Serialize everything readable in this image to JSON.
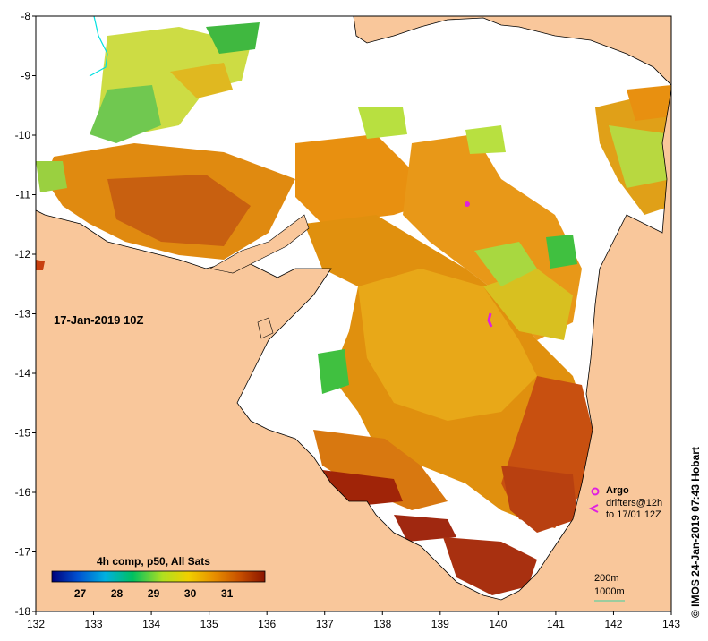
{
  "map": {
    "date_label": "17-Jan-2019 10Z",
    "product_label": "4h comp, p50, All Sats",
    "credit": "© IMOS 24-Jan-2019 07:43 Hobart",
    "lon_ticks": [
      132,
      133,
      134,
      135,
      136,
      137,
      138,
      139,
      140,
      141,
      142,
      143
    ],
    "lat_ticks": [
      -8,
      -9,
      -10,
      -11,
      -12,
      -13,
      -14,
      -15,
      -16,
      -17,
      -18
    ],
    "lon_range": [
      132,
      143
    ],
    "lat_range": [
      -18,
      -8
    ]
  },
  "colorbar": {
    "ticks": [
      27,
      28,
      29,
      30,
      31
    ],
    "range": [
      26.2,
      32.0
    ],
    "colors": [
      "#00007a",
      "#0050d0",
      "#00b0e0",
      "#00c060",
      "#b0e020",
      "#f0d000",
      "#e89000",
      "#c85000",
      "#8a1400"
    ]
  },
  "legend": {
    "argo_label": "Argo",
    "drifters_label": "drifters@12h",
    "drifters_period": "to 17/01 12Z",
    "contour_200": "200m",
    "contour_1000": "1000m",
    "argo_color": "#e020e0"
  },
  "colors": {
    "land": "#f9c79b",
    "nodata": "#ffffff",
    "coast": "#000000",
    "river": "#00e0e0"
  }
}
